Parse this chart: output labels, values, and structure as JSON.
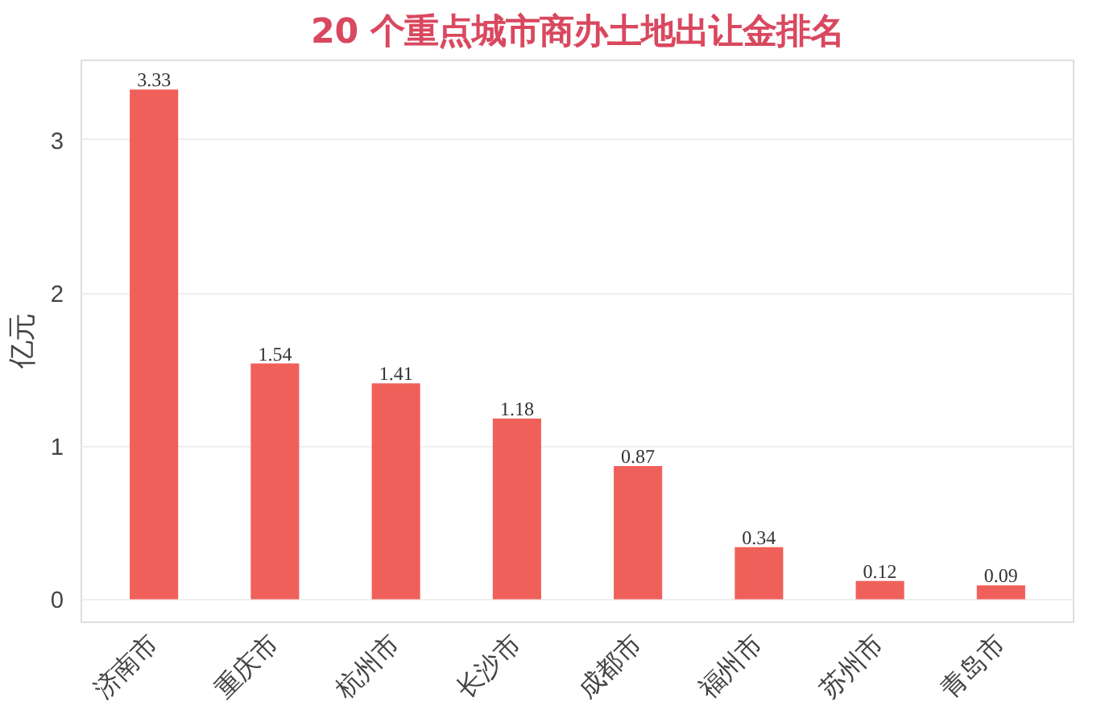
{
  "chart_data": {
    "type": "bar",
    "title": "20 个重点城市商办土地出让金排名",
    "ylabel": "亿元",
    "categories": [
      "济南市",
      "重庆市",
      "杭州市",
      "长沙市",
      "成都市",
      "福州市",
      "苏州市",
      "青岛市"
    ],
    "values": [
      3.33,
      1.54,
      1.41,
      1.18,
      0.87,
      0.34,
      0.12,
      0.09
    ],
    "color": "#f0605a",
    "ylim": [
      -0.15,
      3.52
    ],
    "yticks": [
      0,
      1,
      2,
      3
    ],
    "grid": "y",
    "data_labels": true
  }
}
